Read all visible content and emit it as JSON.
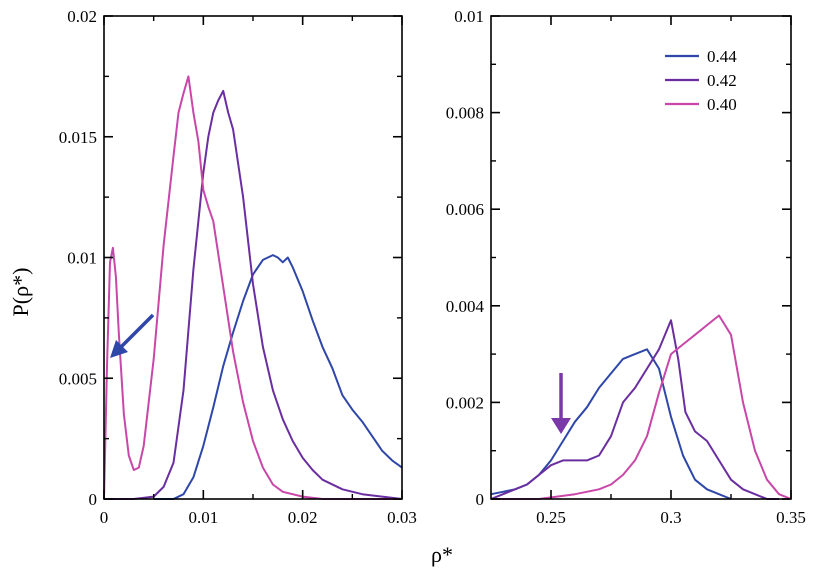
{
  "figure": {
    "ylabel": "P(ρ*)",
    "xlabel": "ρ*"
  },
  "colors": {
    "0.44": "#2e47a8",
    "0.42": "#6a2ea0",
    "0.40": "#c847a8",
    "axis": "#000000"
  },
  "chart_data": [
    {
      "type": "line",
      "panel": "left",
      "xlim": [
        0,
        0.03
      ],
      "ylim": [
        0,
        0.02
      ],
      "xticks": [
        0,
        0.01,
        0.02,
        0.03
      ],
      "xtick_labels": [
        "0",
        "0.01",
        "0.02",
        "0.03"
      ],
      "yticks": [
        0,
        0.005,
        0.01,
        0.015,
        0.02
      ],
      "ytick_labels": [
        "0",
        "0.005",
        "0.01",
        "0.015",
        "0.02"
      ],
      "grid": false,
      "series": [
        {
          "name": "0.44",
          "color": "#2e47a8",
          "x": [
            0.005,
            0.007,
            0.008,
            0.009,
            0.01,
            0.011,
            0.012,
            0.013,
            0.014,
            0.015,
            0.016,
            0.0165,
            0.017,
            0.0175,
            0.018,
            0.0185,
            0.019,
            0.02,
            0.021,
            0.022,
            0.023,
            0.024,
            0.025,
            0.026,
            0.027,
            0.028,
            0.029,
            0.03
          ],
          "y": [
            0.0,
            0.0,
            0.0002,
            0.0009,
            0.0022,
            0.0038,
            0.0055,
            0.0069,
            0.0082,
            0.0093,
            0.0099,
            0.01,
            0.0101,
            0.01,
            0.0098,
            0.01,
            0.0096,
            0.0086,
            0.0074,
            0.0063,
            0.0054,
            0.0043,
            0.0037,
            0.0032,
            0.0026,
            0.002,
            0.0016,
            0.0013
          ]
        },
        {
          "name": "0.42",
          "color": "#6a2ea0",
          "x": [
            0.0,
            0.003,
            0.005,
            0.006,
            0.007,
            0.008,
            0.009,
            0.01,
            0.0105,
            0.011,
            0.0115,
            0.012,
            0.0125,
            0.013,
            0.014,
            0.015,
            0.016,
            0.017,
            0.018,
            0.019,
            0.02,
            0.021,
            0.022,
            0.024,
            0.026,
            0.028,
            0.03
          ],
          "y": [
            0.0,
            0.0,
            0.0001,
            0.0005,
            0.0015,
            0.0045,
            0.0095,
            0.0135,
            0.015,
            0.016,
            0.0165,
            0.0169,
            0.016,
            0.0153,
            0.0125,
            0.0089,
            0.0063,
            0.0045,
            0.0033,
            0.0024,
            0.0017,
            0.0012,
            0.0008,
            0.0004,
            0.0002,
            0.0001,
            0.0
          ]
        },
        {
          "name": "0.40",
          "color": "#c847a8",
          "x": [
            0.0,
            0.0003,
            0.0006,
            0.0009,
            0.0012,
            0.0015,
            0.002,
            0.0025,
            0.003,
            0.0035,
            0.004,
            0.005,
            0.006,
            0.007,
            0.0075,
            0.008,
            0.0085,
            0.009,
            0.0095,
            0.01,
            0.0105,
            0.011,
            0.012,
            0.013,
            0.014,
            0.015,
            0.016,
            0.017,
            0.018,
            0.02,
            0.022,
            0.025,
            0.03
          ],
          "y": [
            0.0,
            0.0055,
            0.0098,
            0.0104,
            0.0092,
            0.0068,
            0.0035,
            0.0018,
            0.0012,
            0.0013,
            0.0022,
            0.0058,
            0.0105,
            0.0142,
            0.016,
            0.0168,
            0.0175,
            0.016,
            0.0148,
            0.0128,
            0.0121,
            0.0115,
            0.0088,
            0.0061,
            0.004,
            0.0024,
            0.0013,
            0.0006,
            0.0003,
            0.0001,
            0.0,
            0.0,
            0.0
          ]
        }
      ]
    },
    {
      "type": "line",
      "panel": "right",
      "xlim": [
        0.225,
        0.35
      ],
      "ylim": [
        0,
        0.01
      ],
      "xticks": [
        0.25,
        0.3,
        0.35
      ],
      "xtick_labels": [
        "0.25",
        "0.3",
        "0.35"
      ],
      "yticks": [
        0,
        0.002,
        0.004,
        0.006,
        0.008,
        0.01
      ],
      "ytick_labels": [
        "0",
        "0.002",
        "0.004",
        "0.006",
        "0.008",
        "0.01"
      ],
      "grid": false,
      "legend": "top-right",
      "series": [
        {
          "name": "0.44",
          "color": "#2e47a8",
          "x": [
            0.225,
            0.23,
            0.235,
            0.24,
            0.245,
            0.25,
            0.255,
            0.26,
            0.265,
            0.27,
            0.275,
            0.28,
            0.285,
            0.29,
            0.295,
            0.3,
            0.305,
            0.31,
            0.315,
            0.32,
            0.325
          ],
          "y": [
            0.0001,
            0.00015,
            0.0002,
            0.0003,
            0.0005,
            0.0008,
            0.0012,
            0.0016,
            0.0019,
            0.0023,
            0.0026,
            0.0029,
            0.003,
            0.0031,
            0.0027,
            0.0017,
            0.0009,
            0.0004,
            0.0002,
            0.0001,
            0.0
          ]
        },
        {
          "name": "0.42",
          "color": "#6a2ea0",
          "x": [
            0.225,
            0.23,
            0.235,
            0.24,
            0.245,
            0.25,
            0.255,
            0.26,
            0.265,
            0.27,
            0.275,
            0.28,
            0.285,
            0.29,
            0.295,
            0.3,
            0.303,
            0.306,
            0.31,
            0.315,
            0.32,
            0.325,
            0.33,
            0.335,
            0.34,
            0.345
          ],
          "y": [
            0.0,
            0.0001,
            0.0002,
            0.0003,
            0.0005,
            0.0007,
            0.0008,
            0.0008,
            0.0008,
            0.0009,
            0.0013,
            0.002,
            0.0023,
            0.0027,
            0.0031,
            0.0037,
            0.0029,
            0.0018,
            0.0014,
            0.0012,
            0.0008,
            0.0004,
            0.0002,
            0.0001,
            0.0,
            0.0
          ]
        },
        {
          "name": "0.40",
          "color": "#c847a8",
          "x": [
            0.225,
            0.245,
            0.26,
            0.27,
            0.275,
            0.28,
            0.285,
            0.29,
            0.295,
            0.3,
            0.305,
            0.31,
            0.315,
            0.32,
            0.325,
            0.33,
            0.335,
            0.34,
            0.345,
            0.35
          ],
          "y": [
            0.0,
            0.0,
            0.0001,
            0.0002,
            0.0003,
            0.0005,
            0.0008,
            0.0013,
            0.0022,
            0.003,
            0.0032,
            0.0034,
            0.0036,
            0.0038,
            0.0034,
            0.002,
            0.001,
            0.0004,
            0.0001,
            0.0
          ]
        }
      ]
    }
  ]
}
